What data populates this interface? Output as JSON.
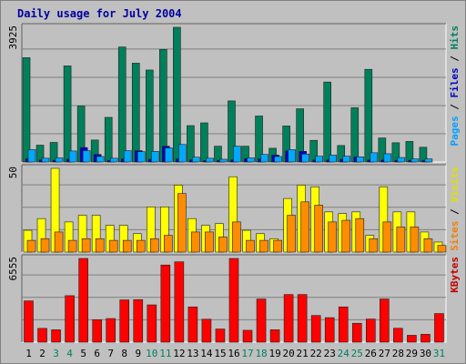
{
  "chart_data": {
    "type": "bar",
    "title": "Daily usage for July 2004",
    "categories": [
      "1",
      "2",
      "3",
      "4",
      "5",
      "6",
      "7",
      "8",
      "9",
      "10",
      "11",
      "12",
      "13",
      "14",
      "15",
      "16",
      "17",
      "18",
      "19",
      "20",
      "21",
      "22",
      "23",
      "24",
      "25",
      "26",
      "27",
      "28",
      "29",
      "30",
      "31"
    ],
    "weekend_days": [
      "3",
      "4",
      "10",
      "11",
      "17",
      "18",
      "24",
      "25",
      "31"
    ],
    "panels": [
      {
        "id": "top",
        "max_label": "3925",
        "ylim": [
          0,
          3925
        ],
        "side_labels": [
          {
            "text": "Pages",
            "color": "#00a0ff"
          },
          {
            "text": " / ",
            "color": "#000000"
          },
          {
            "text": "Files",
            "color": "#0000c0"
          },
          {
            "text": " / ",
            "color": "#000000"
          },
          {
            "text": "Hits",
            "color": "#008060"
          }
        ],
        "series": [
          {
            "name": "Hits",
            "color": "#00805a",
            "values": [
              3040,
              490,
              570,
              2800,
              1630,
              640,
              1300,
              3350,
              2880,
              2680,
              3280,
              3925,
              1060,
              1140,
              460,
              1780,
              460,
              1340,
              400,
              1050,
              1550,
              630,
              2330,
              480,
              1580,
              2700,
              700,
              560,
              600,
              430,
              0
            ]
          },
          {
            "name": "Files",
            "color": "#0000cc",
            "values": [
              90,
              60,
              50,
              80,
              420,
              220,
              50,
              90,
              330,
              80,
              460,
              90,
              60,
              40,
              50,
              60,
              100,
              90,
              200,
              320,
              310,
              60,
              60,
              80,
              150,
              60,
              60,
              50,
              50,
              50,
              0
            ]
          },
          {
            "name": "Pages",
            "color": "#00a8ff",
            "values": [
              360,
              110,
              120,
              320,
              330,
              160,
              110,
              330,
              300,
              310,
              410,
              510,
              140,
              110,
              80,
              460,
              120,
              220,
              160,
              360,
              230,
              170,
              200,
              170,
              150,
              270,
              240,
              130,
              90,
              90,
              0
            ]
          }
        ]
      },
      {
        "id": "middle",
        "max_label": "50",
        "ylim": [
          0,
          50
        ],
        "side_labels": [
          {
            "text": "Sites",
            "color": "#f08000"
          },
          {
            "text": " / ",
            "color": "#000000"
          },
          {
            "text": "Visits",
            "color": "#e0e000"
          }
        ],
        "series": [
          {
            "name": "Visits",
            "color": "#ffff00",
            "values": [
              13,
              20,
              50,
              18,
              22,
              22,
              16,
              16,
              11,
              27,
              27,
              40,
              20,
              16,
              17,
              45,
              13,
              11,
              8,
              32,
              40,
              39,
              24,
              23,
              24,
              10,
              39,
              24,
              24,
              12,
              6
            ]
          },
          {
            "name": "Sites",
            "color": "#ff8c00",
            "values": [
              7,
              8,
              12,
              7,
              8,
              8,
              7,
              7,
              7,
              8,
              10,
              35,
              12,
              12,
              9,
              18,
              7,
              7,
              7,
              22,
              30,
              28,
              18,
              19,
              20,
              8,
              18,
              15,
              15,
              8,
              4
            ]
          }
        ]
      },
      {
        "id": "bottom",
        "max_label": "6555",
        "ylim": [
          0,
          6555
        ],
        "side_labels": [
          {
            "text": "KBytes",
            "color": "#c00000"
          }
        ],
        "series": [
          {
            "name": "KBytes",
            "color": "#ff0000",
            "values": [
              3230,
              1080,
              970,
              3640,
              6555,
              1760,
              1850,
              3310,
              3330,
              2920,
              6040,
              6290,
              2760,
              1800,
              1030,
              6555,
              930,
              3380,
              970,
              3730,
              3730,
              2090,
              1920,
              2760,
              1480,
              1810,
              3380,
              1090,
              540,
              620,
              2240
            ]
          }
        ]
      }
    ],
    "colors": {
      "frame_bg": "#c0c0c0",
      "plot_bg": "#c0c0c0",
      "grid": "#808080",
      "title": "#0000a0",
      "weekday_label": "#000000",
      "weekend_label": "#008060"
    }
  }
}
